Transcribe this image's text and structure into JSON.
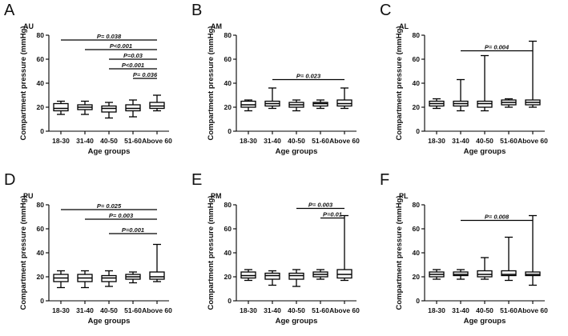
{
  "chart_data": [
    {
      "type": "boxplot",
      "panel_label": "A",
      "subtitle": "AU",
      "ylabel": "Compartment pressure (mmHg)",
      "xlabel": "Age groups",
      "ylim": [
        0,
        80
      ],
      "yticks": [
        "0",
        "20",
        "40",
        "60",
        "80"
      ],
      "categories": [
        "18-30",
        "31-40",
        "40-50",
        "51-60",
        "Above 60"
      ],
      "boxes": [
        {
          "min": 14,
          "q1": 17,
          "median": 19,
          "q3": 23,
          "max": 25
        },
        {
          "min": 14,
          "q1": 18,
          "median": 20,
          "q3": 22,
          "max": 25
        },
        {
          "min": 11,
          "q1": 16,
          "median": 19,
          "q3": 21,
          "max": 24
        },
        {
          "min": 12,
          "q1": 17,
          "median": 19,
          "q3": 22,
          "max": 26
        },
        {
          "min": 17,
          "q1": 19,
          "median": 21,
          "q3": 24,
          "max": 30
        }
      ],
      "annotations": [
        {
          "text": "P= 0.038",
          "from": 0,
          "to": 4,
          "y": 76
        },
        {
          "text": "P<0.001",
          "from": 1,
          "to": 4,
          "y": 68
        },
        {
          "text": "P=0.03",
          "from": 2,
          "to": 4,
          "y": 60
        },
        {
          "text": "P<0.001",
          "from": 2,
          "to": 4,
          "y": 52
        },
        {
          "text": "P= 0.036",
          "from": 3,
          "to": 4,
          "y": 44
        }
      ]
    },
    {
      "type": "boxplot",
      "panel_label": "B",
      "subtitle": "AM",
      "ylabel": "Compartment pressure (mmHg)",
      "xlabel": "Age groups",
      "ylim": [
        0,
        80
      ],
      "yticks": [
        "0",
        "20",
        "40",
        "60",
        "80"
      ],
      "categories": [
        "18-30",
        "31-40",
        "40-50",
        "51-60",
        "Above 60"
      ],
      "boxes": [
        {
          "min": 17,
          "q1": 20,
          "median": 22,
          "q3": 25,
          "max": 26
        },
        {
          "min": 19,
          "q1": 21,
          "median": 23,
          "q3": 25,
          "max": 36
        },
        {
          "min": 17,
          "q1": 20,
          "median": 22,
          "q3": 24,
          "max": 26
        },
        {
          "min": 19,
          "q1": 21,
          "median": 23,
          "q3": 24,
          "max": 26
        },
        {
          "min": 19,
          "q1": 21,
          "median": 23,
          "q3": 26,
          "max": 36
        }
      ],
      "annotations": [
        {
          "text": "P= 0.023",
          "from": 1,
          "to": 4,
          "y": 43
        }
      ]
    },
    {
      "type": "boxplot",
      "panel_label": "C",
      "subtitle": "AL",
      "ylabel": "Compartment pressure (mmHg)",
      "xlabel": "Age groups",
      "ylim": [
        0,
        80
      ],
      "yticks": [
        "0",
        "20",
        "40",
        "60",
        "80"
      ],
      "categories": [
        "18-30",
        "31-40",
        "40-50",
        "51-60",
        "Above 60"
      ],
      "boxes": [
        {
          "min": 19,
          "q1": 21,
          "median": 23,
          "q3": 25,
          "max": 27
        },
        {
          "min": 17,
          "q1": 21,
          "median": 23,
          "q3": 25,
          "max": 43
        },
        {
          "min": 17,
          "q1": 20,
          "median": 23,
          "q3": 25,
          "max": 63
        },
        {
          "min": 20,
          "q1": 22,
          "median": 24,
          "q3": 26,
          "max": 27
        },
        {
          "min": 20,
          "q1": 22,
          "median": 24,
          "q3": 26,
          "max": 75
        }
      ],
      "annotations": [
        {
          "text": "P= 0.004",
          "from": 1,
          "to": 4,
          "y": 67
        }
      ]
    },
    {
      "type": "boxplot",
      "panel_label": "D",
      "subtitle": "PU",
      "ylabel": "Compartment pressure (mmHg)",
      "xlabel": "Age groups",
      "ylim": [
        0,
        80
      ],
      "yticks": [
        "0",
        "20",
        "40",
        "60",
        "80"
      ],
      "categories": [
        "18-30",
        "31-40",
        "40-50",
        "51-60",
        "Above 60"
      ],
      "boxes": [
        {
          "min": 11,
          "q1": 16,
          "median": 19,
          "q3": 22,
          "max": 25
        },
        {
          "min": 11,
          "q1": 16,
          "median": 19,
          "q3": 22,
          "max": 25
        },
        {
          "min": 12,
          "q1": 16,
          "median": 19,
          "q3": 21,
          "max": 25
        },
        {
          "min": 15,
          "q1": 18,
          "median": 20,
          "q3": 22,
          "max": 24
        },
        {
          "min": 16,
          "q1": 18,
          "median": 20,
          "q3": 24,
          "max": 47
        }
      ],
      "annotations": [
        {
          "text": "P= 0.025",
          "from": 0,
          "to": 4,
          "y": 76
        },
        {
          "text": "P= 0.003",
          "from": 1,
          "to": 4,
          "y": 68
        },
        {
          "text": "P=0.001",
          "from": 2,
          "to": 4,
          "y": 56
        }
      ]
    },
    {
      "type": "boxplot",
      "panel_label": "E",
      "subtitle": "PM",
      "ylabel": "Compartment pressure (mmHg)",
      "xlabel": "Age groups",
      "ylim": [
        0,
        80
      ],
      "yticks": [
        "0",
        "20",
        "40",
        "60",
        "80"
      ],
      "categories": [
        "18-30",
        "31-40",
        "40-50",
        "51-60",
        "Above 60"
      ],
      "boxes": [
        {
          "min": 17,
          "q1": 19,
          "median": 21,
          "q3": 24,
          "max": 26
        },
        {
          "min": 13,
          "q1": 18,
          "median": 21,
          "q3": 23,
          "max": 25
        },
        {
          "min": 12,
          "q1": 18,
          "median": 21,
          "q3": 23,
          "max": 26
        },
        {
          "min": 18,
          "q1": 20,
          "median": 22,
          "q3": 24,
          "max": 26
        },
        {
          "min": 17,
          "q1": 19,
          "median": 22,
          "q3": 26,
          "max": 71
        }
      ],
      "annotations": [
        {
          "text": "P= 0.003",
          "from": 2,
          "to": 4,
          "y": 77
        },
        {
          "text": "P=0.01",
          "from": 3,
          "to": 4,
          "y": 69
        }
      ]
    },
    {
      "type": "boxplot",
      "panel_label": "F",
      "subtitle": "PL",
      "ylabel": "Compartment pressure (mmHg)",
      "xlabel": "Age groups",
      "ylim": [
        0,
        80
      ],
      "yticks": [
        "0",
        "20",
        "40",
        "60",
        "80"
      ],
      "categories": [
        "18-30",
        "31-40",
        "40-50",
        "51-60",
        "Above 60"
      ],
      "boxes": [
        {
          "min": 18,
          "q1": 20,
          "median": 22,
          "q3": 24,
          "max": 26
        },
        {
          "min": 18,
          "q1": 21,
          "median": 22,
          "q3": 24,
          "max": 26
        },
        {
          "min": 18,
          "q1": 20,
          "median": 22,
          "q3": 25,
          "max": 36
        },
        {
          "min": 17,
          "q1": 21,
          "median": 22,
          "q3": 25,
          "max": 53
        },
        {
          "min": 13,
          "q1": 21,
          "median": 22,
          "q3": 24,
          "max": 71
        }
      ],
      "annotations": [
        {
          "text": "P= 0.008",
          "from": 1,
          "to": 4,
          "y": 67
        }
      ]
    }
  ]
}
